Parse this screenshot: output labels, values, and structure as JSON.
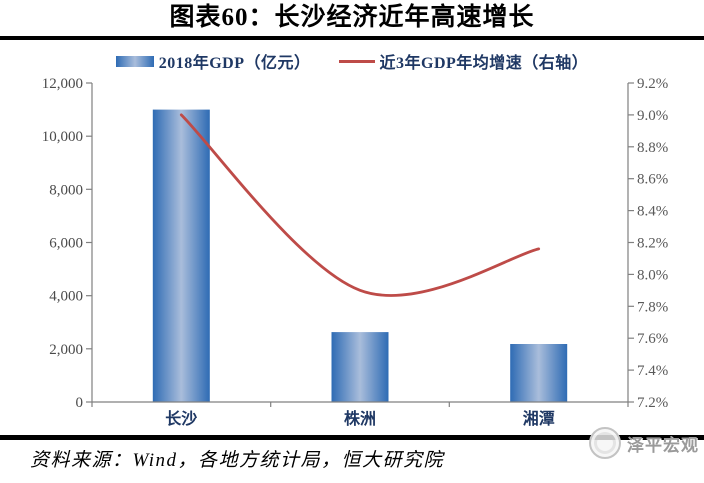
{
  "title": "图表60：长沙经济近年高速增长",
  "legend": {
    "bar_label": "2018年GDP（亿元）",
    "line_label": "近3年GDP年均增速（右轴）"
  },
  "chart_data": {
    "type": "bar+line combo",
    "categories": [
      "长沙",
      "株洲",
      "湘潭"
    ],
    "series": [
      {
        "name": "2018年GDP（亿元）",
        "type": "bar",
        "axis": "left",
        "values": [
          11000,
          2630,
          2180
        ]
      },
      {
        "name": "近3年GDP年均增速（右轴）",
        "type": "line",
        "axis": "right",
        "values": [
          9.0,
          7.9,
          8.16
        ]
      }
    ],
    "left_axis": {
      "min": 0,
      "max": 12000,
      "tick_labels": [
        "0",
        "2,000",
        "4,000",
        "6,000",
        "8,000",
        "10,000",
        "12,000"
      ]
    },
    "right_axis": {
      "min": 7.2,
      "max": 9.2,
      "tick_labels": [
        "7.2%",
        "7.4%",
        "7.6%",
        "7.8%",
        "8.0%",
        "8.2%",
        "8.4%",
        "8.6%",
        "8.8%",
        "9.0%",
        "9.2%"
      ]
    },
    "grid": false,
    "legend_position": "top-center",
    "line_smooth": true,
    "colors": {
      "bar_edge": "#2E6BB4",
      "bar_center": "#A9BDDB",
      "line": "#BE4B48",
      "axis": "#808080",
      "left_tick_text": "#4a4a4a",
      "right_tick_text": "#595959",
      "category_text": "#1F3864",
      "legend_text": "#1F3864"
    }
  },
  "footer": {
    "source": "资料来源：Wind，各地方统计局，恒大研究院",
    "watermark": "泽平宏观"
  }
}
